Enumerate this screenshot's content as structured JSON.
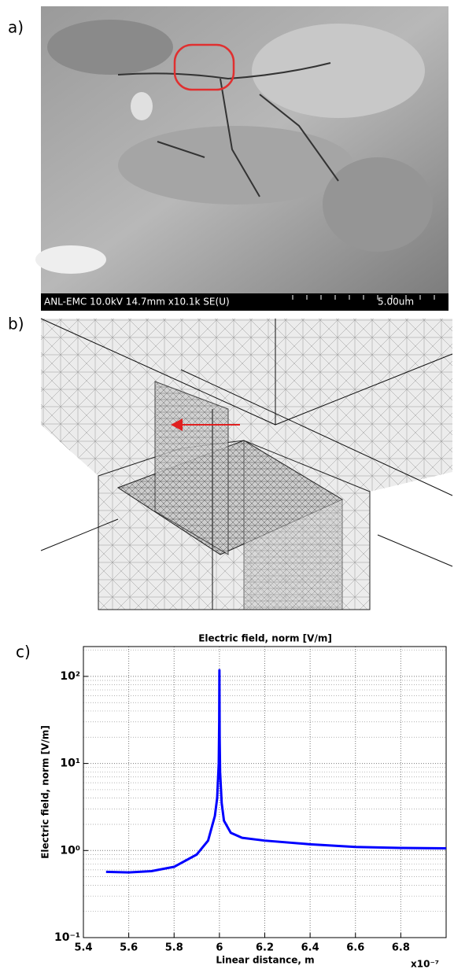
{
  "panels": {
    "a": "a)",
    "b": "b)",
    "c": "c)"
  },
  "sem": {
    "info": "ANL-EMC 10.0kV 14.7mm x10.1k SE(U)",
    "scale": "5.00um"
  },
  "chart_data": {
    "type": "line",
    "title": "Electric field, norm [V/m]",
    "x_label": "Linear distance, m",
    "y_label": "Electric field, norm [V/m]",
    "x_multiplier": "x10⁻⁷",
    "log_y": true,
    "grid": true,
    "color": "#0000ff",
    "xlim": [
      5.4e-07,
      7e-07
    ],
    "xticks": [
      {
        "value": 5.4e-07,
        "label": "5.4"
      },
      {
        "value": 5.6e-07,
        "label": "5.6"
      },
      {
        "value": 5.8e-07,
        "label": "5.8"
      },
      {
        "value": 6e-07,
        "label": "6"
      },
      {
        "value": 6.2e-07,
        "label": "6.2"
      },
      {
        "value": 6.4e-07,
        "label": "6.4"
      },
      {
        "value": 6.6e-07,
        "label": "6.6"
      },
      {
        "value": 6.8e-07,
        "label": "6.8"
      }
    ],
    "ylim": [
      0.1,
      220
    ],
    "yticks": [
      {
        "value": 0.1,
        "label": "10⁻¹"
      },
      {
        "value": 1,
        "label": "10⁰"
      },
      {
        "value": 10,
        "label": "10¹"
      },
      {
        "value": 100,
        "label": "10²"
      }
    ],
    "y_minor_ticks": [
      0.2,
      0.3,
      0.4,
      0.5,
      0.6,
      0.7,
      0.8,
      0.9,
      2,
      3,
      4,
      5,
      6,
      7,
      8,
      9,
      20,
      30,
      40,
      50,
      60,
      70,
      80,
      90,
      200
    ],
    "x": [
      5.5e-07,
      5.6e-07,
      5.7e-07,
      5.8e-07,
      5.9e-07,
      5.95e-07,
      5.98e-07,
      5.99e-07,
      5.997e-07,
      5.999e-07,
      6e-07,
      6.001e-07,
      6.003e-07,
      6.01e-07,
      6.02e-07,
      6.05e-07,
      6.1e-07,
      6.2e-07,
      6.4e-07,
      6.6e-07,
      6.8e-07,
      7e-07
    ],
    "values": [
      0.57,
      0.56,
      0.58,
      0.65,
      0.9,
      1.3,
      2.5,
      4,
      10,
      30,
      118,
      20,
      8,
      3.5,
      2.2,
      1.6,
      1.4,
      1.3,
      1.18,
      1.1,
      1.07,
      1.06
    ]
  }
}
